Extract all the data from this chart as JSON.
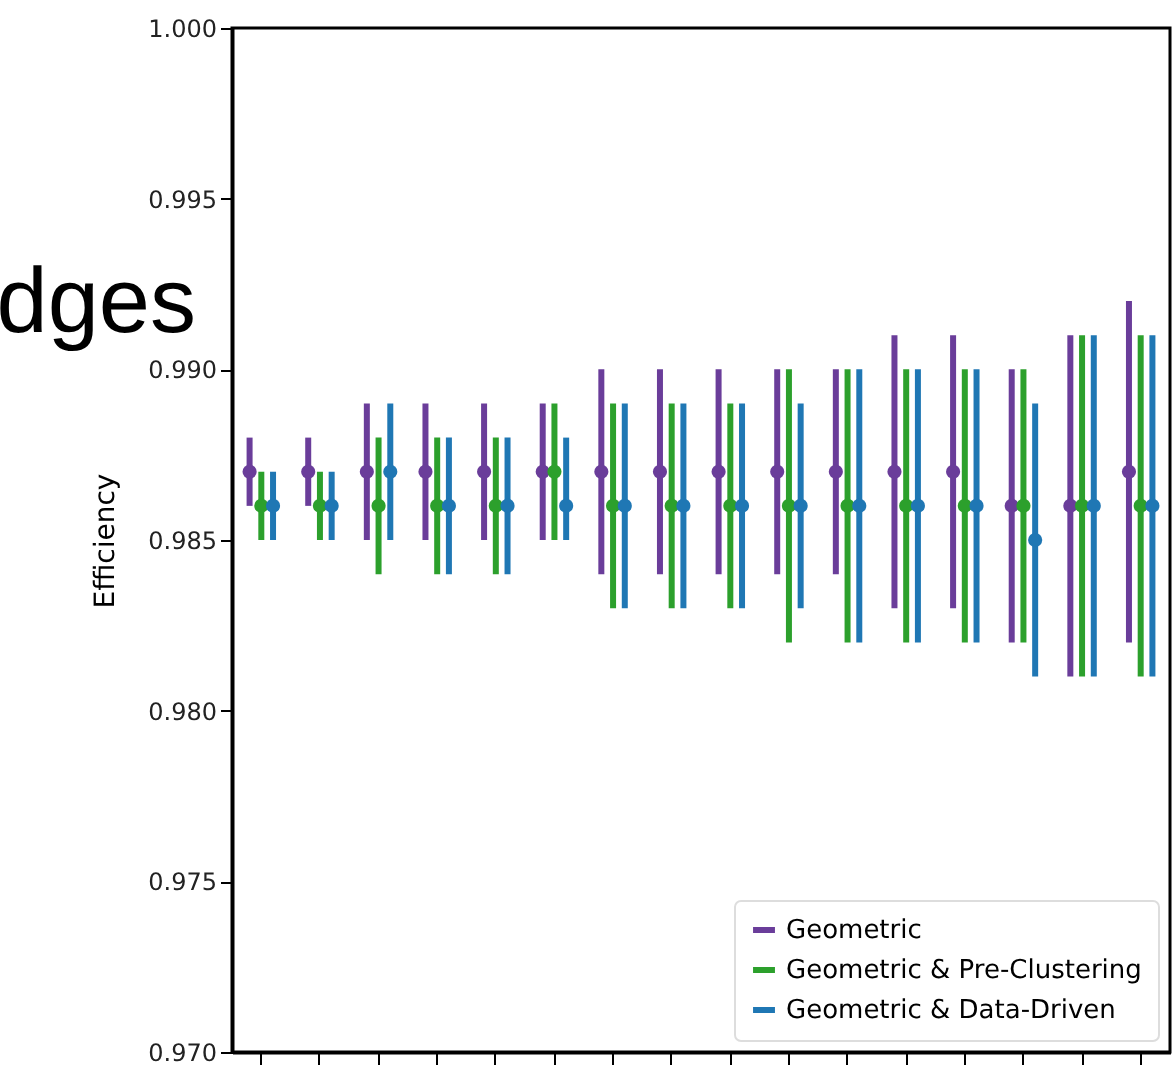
{
  "chart_data": {
    "type": "scatter",
    "ylabel": "Efficiency",
    "annotations": [
      "dges"
    ],
    "categories": [
      null,
      null,
      null,
      null,
      null,
      null,
      null,
      null,
      null,
      null,
      null,
      null,
      null,
      null,
      null,
      null
    ],
    "ylim": [
      0.97,
      1.0
    ],
    "yticks": [
      {
        "value": 0.97,
        "label": "0.970"
      },
      {
        "value": 0.975,
        "label": "0.975"
      },
      {
        "value": 0.98,
        "label": "0.980"
      },
      {
        "value": 0.985,
        "label": "0.985"
      },
      {
        "value": 0.99,
        "label": "0.990"
      },
      {
        "value": 0.995,
        "label": "0.995"
      },
      {
        "value": 1.0,
        "label": "1.000"
      }
    ],
    "tick_labels": "y",
    "marker": "circle",
    "legend": "bottom right",
    "grid": false,
    "series": [
      {
        "name": "Geometric",
        "color": "#6a3d9a",
        "values": [
          0.987,
          0.987,
          0.987,
          0.987,
          0.987,
          0.987,
          0.987,
          0.987,
          0.987,
          0.987,
          0.987,
          0.987,
          0.987,
          0.986,
          0.986,
          0.987
        ],
        "errors": [
          [
            0.986,
            0.988
          ],
          [
            0.986,
            0.988
          ],
          [
            0.985,
            0.989
          ],
          [
            0.985,
            0.989
          ],
          [
            0.985,
            0.989
          ],
          [
            0.985,
            0.989
          ],
          [
            0.984,
            0.99
          ],
          [
            0.984,
            0.99
          ],
          [
            0.984,
            0.99
          ],
          [
            0.984,
            0.99
          ],
          [
            0.984,
            0.99
          ],
          [
            0.983,
            0.991
          ],
          [
            0.983,
            0.991
          ],
          [
            0.982,
            0.99
          ],
          [
            0.981,
            0.991
          ],
          [
            0.982,
            0.992
          ]
        ]
      },
      {
        "name": "Geometric & Pre-Clustering",
        "color": "#2ca02c",
        "values": [
          0.986,
          0.986,
          0.986,
          0.986,
          0.986,
          0.987,
          0.986,
          0.986,
          0.986,
          0.986,
          0.986,
          0.986,
          0.986,
          0.986,
          0.986,
          0.986
        ],
        "errors": [
          [
            0.985,
            0.987
          ],
          [
            0.985,
            0.987
          ],
          [
            0.984,
            0.988
          ],
          [
            0.984,
            0.988
          ],
          [
            0.984,
            0.988
          ],
          [
            0.985,
            0.989
          ],
          [
            0.983,
            0.989
          ],
          [
            0.983,
            0.989
          ],
          [
            0.983,
            0.989
          ],
          [
            0.982,
            0.99
          ],
          [
            0.982,
            0.99
          ],
          [
            0.982,
            0.99
          ],
          [
            0.982,
            0.99
          ],
          [
            0.982,
            0.99
          ],
          [
            0.981,
            0.991
          ],
          [
            0.981,
            0.991
          ]
        ]
      },
      {
        "name": "Geometric & Data-Driven",
        "color": "#1f77b4",
        "values": [
          0.986,
          0.986,
          0.987,
          0.986,
          0.986,
          0.986,
          0.986,
          0.986,
          0.986,
          0.986,
          0.986,
          0.986,
          0.986,
          0.985,
          0.986,
          0.986
        ],
        "errors": [
          [
            0.985,
            0.987
          ],
          [
            0.985,
            0.987
          ],
          [
            0.985,
            0.989
          ],
          [
            0.984,
            0.988
          ],
          [
            0.984,
            0.988
          ],
          [
            0.985,
            0.988
          ],
          [
            0.983,
            0.989
          ],
          [
            0.983,
            0.989
          ],
          [
            0.983,
            0.989
          ],
          [
            0.983,
            0.989
          ],
          [
            0.982,
            0.99
          ],
          [
            0.982,
            0.99
          ],
          [
            0.982,
            0.99
          ],
          [
            0.981,
            0.989
          ],
          [
            0.981,
            0.991
          ],
          [
            0.981,
            0.991
          ]
        ]
      }
    ]
  }
}
